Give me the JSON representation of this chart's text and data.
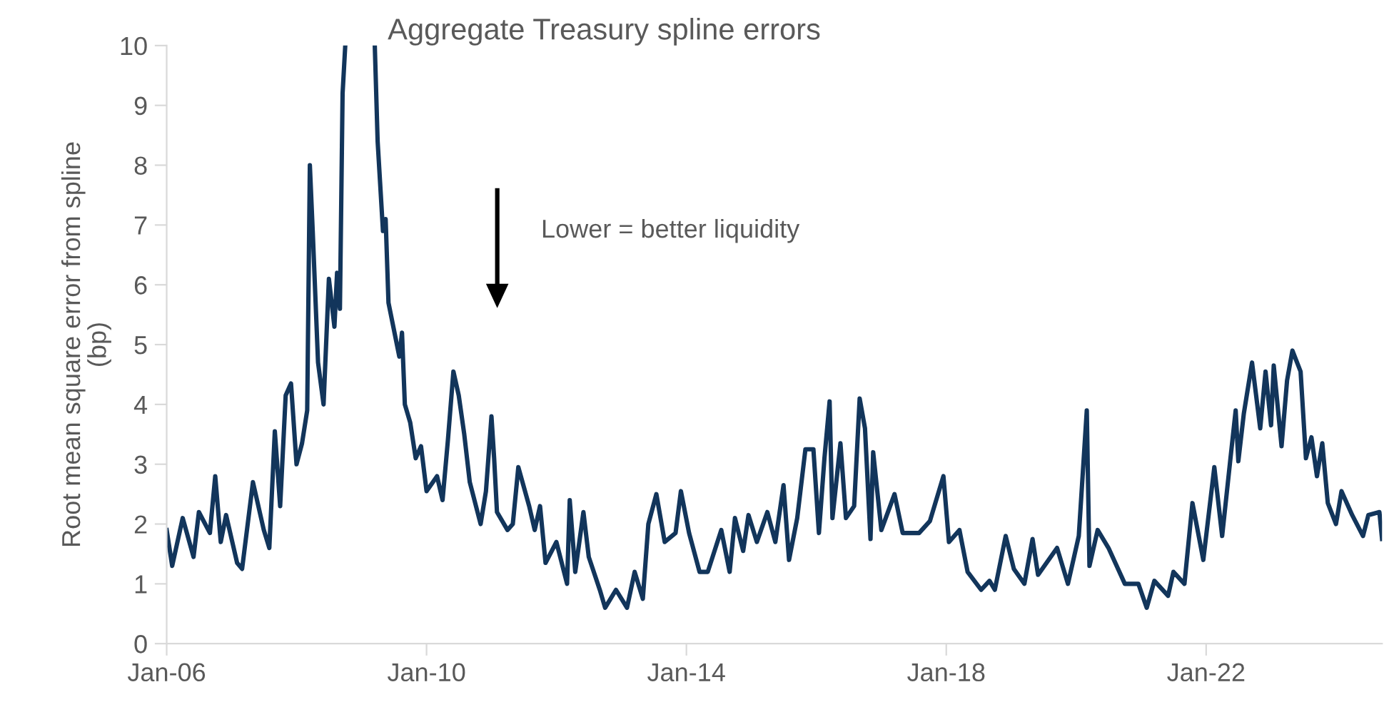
{
  "chart_data": {
    "type": "line",
    "title": "Aggregate Treasury spline errors",
    "ylabel": "Root mean square error from spline\n(bp)",
    "annotations": [
      "Lower = better liquidity"
    ],
    "xlim": [
      "2006-01-01",
      "2024-09-16"
    ],
    "xticks": [
      {
        "value": "2006-01-01",
        "label": "Jan-06"
      },
      {
        "value": "2010-01-01",
        "label": "Jan-10"
      },
      {
        "value": "2014-01-01",
        "label": "Jan-14"
      },
      {
        "value": "2018-01-01",
        "label": "Jan-18"
      },
      {
        "value": "2022-01-01",
        "label": "Jan-22"
      }
    ],
    "ylim": [
      0,
      10
    ],
    "yticks": [
      0,
      1,
      2,
      3,
      4,
      5,
      6,
      7,
      8,
      9,
      10
    ],
    "grid": false,
    "legend": false,
    "series": [
      {
        "color": "#12355b",
        "x": [
          "2006-01-01",
          "2006-02-01",
          "2006-04-01",
          "2006-06-01",
          "2006-07-01",
          "2006-09-01",
          "2006-10-01",
          "2006-11-01",
          "2006-12-01",
          "2007-02-01",
          "2007-03-01",
          "2007-05-01",
          "2007-07-01",
          "2007-08-01",
          "2007-09-01",
          "2007-10-01",
          "2007-11-01",
          "2007-12-01",
          "2008-01-01",
          "2008-02-01",
          "2008-03-01",
          "2008-03-16",
          "2008-04-01",
          "2008-05-01",
          "2008-06-01",
          "2008-07-01",
          "2008-08-01",
          "2008-08-16",
          "2008-09-01",
          "2008-09-16",
          "2008-10-01",
          "2008-12-01",
          "2009-03-16",
          "2009-04-01",
          "2009-05-01",
          "2009-05-16",
          "2009-06-01",
          "2009-08-01",
          "2009-08-16",
          "2009-09-01",
          "2009-10-01",
          "2009-11-01",
          "2009-12-01",
          "2010-01-01",
          "2010-03-01",
          "2010-04-01",
          "2010-05-01",
          "2010-06-01",
          "2010-07-01",
          "2010-08-01",
          "2010-09-01",
          "2010-11-01",
          "2010-12-01",
          "2011-01-01",
          "2011-01-16",
          "2011-02-01",
          "2011-04-01",
          "2011-05-01",
          "2011-06-01",
          "2011-08-01",
          "2011-09-01",
          "2011-10-01",
          "2011-11-01",
          "2012-01-01",
          "2012-03-01",
          "2012-03-16",
          "2012-04-16",
          "2012-06-01",
          "2012-07-01",
          "2012-09-01",
          "2012-10-01",
          "2012-12-01",
          "2013-02-01",
          "2013-03-16",
          "2013-05-01",
          "2013-06-01",
          "2013-07-16",
          "2013-09-01",
          "2013-11-01",
          "2013-12-01",
          "2014-01-16",
          "2014-03-16",
          "2014-05-01",
          "2014-07-16",
          "2014-09-01",
          "2014-10-01",
          "2014-11-16",
          "2014-12-16",
          "2015-02-01",
          "2015-04-01",
          "2015-05-16",
          "2015-07-01",
          "2015-08-01",
          "2015-09-16",
          "2015-11-01",
          "2015-12-16",
          "2016-01-16",
          "2016-02-16",
          "2016-03-16",
          "2016-04-01",
          "2016-05-16",
          "2016-06-16",
          "2016-08-01",
          "2016-09-01",
          "2016-10-01",
          "2016-11-01",
          "2016-11-16",
          "2017-01-01",
          "2017-03-16",
          "2017-05-01",
          "2017-08-01",
          "2017-10-01",
          "2017-12-16",
          "2018-01-16",
          "2018-03-16",
          "2018-05-01",
          "2018-07-16",
          "2018-09-01",
          "2018-10-01",
          "2018-12-01",
          "2019-01-16",
          "2019-03-16",
          "2019-05-01",
          "2019-06-01",
          "2019-09-16",
          "2019-11-16",
          "2020-01-16",
          "2020-03-01",
          "2020-03-16",
          "2020-05-01",
          "2020-07-01",
          "2020-10-01",
          "2020-12-16",
          "2021-02-01",
          "2021-03-16",
          "2021-06-01",
          "2021-07-01",
          "2021-09-01",
          "2021-10-16",
          "2021-12-16",
          "2022-02-16",
          "2022-04-01",
          "2022-05-16",
          "2022-06-16",
          "2022-07-01",
          "2022-08-01",
          "2022-09-16",
          "2022-11-01",
          "2022-12-01",
          "2023-01-01",
          "2023-01-16",
          "2023-03-01",
          "2023-04-01",
          "2023-05-01",
          "2023-06-16",
          "2023-07-16",
          "2023-08-16",
          "2023-09-16",
          "2023-10-16",
          "2023-11-16",
          "2024-01-01",
          "2024-02-01",
          "2024-04-01",
          "2024-06-01",
          "2024-07-01",
          "2024-09-01",
          "2024-09-16"
        ],
        "values": [
          1.9,
          1.3,
          2.1,
          1.45,
          2.2,
          1.85,
          2.8,
          1.7,
          2.15,
          1.35,
          1.25,
          2.7,
          1.9,
          1.6,
          3.55,
          2.3,
          4.15,
          4.35,
          3.0,
          3.35,
          3.9,
          8.0,
          6.9,
          4.7,
          4.0,
          6.1,
          5.3,
          6.2,
          5.6,
          9.2,
          10,
          null,
          10,
          8.4,
          6.9,
          7.1,
          5.7,
          4.8,
          5.2,
          4.0,
          3.7,
          3.1,
          3.3,
          2.55,
          2.8,
          2.4,
          3.4,
          4.55,
          4.15,
          3.5,
          2.7,
          2.0,
          2.55,
          3.8,
          3.1,
          2.2,
          1.9,
          2.0,
          2.95,
          2.3,
          1.9,
          2.3,
          1.35,
          1.7,
          1.0,
          2.4,
          1.2,
          2.2,
          1.45,
          0.9,
          0.6,
          0.9,
          0.6,
          1.2,
          0.75,
          2.0,
          2.5,
          1.7,
          1.85,
          2.55,
          1.85,
          1.2,
          1.2,
          1.9,
          1.2,
          2.1,
          1.55,
          2.15,
          1.7,
          2.2,
          1.7,
          2.65,
          1.4,
          2.1,
          3.25,
          3.25,
          1.85,
          3.1,
          4.05,
          2.1,
          3.35,
          2.1,
          2.3,
          4.1,
          3.6,
          1.75,
          3.2,
          1.9,
          2.5,
          1.85,
          1.85,
          2.05,
          2.8,
          1.7,
          1.9,
          1.2,
          0.9,
          1.05,
          0.9,
          1.8,
          1.25,
          1.0,
          1.75,
          1.15,
          1.6,
          1.0,
          1.8,
          3.9,
          1.3,
          1.9,
          1.6,
          1.0,
          1.0,
          0.6,
          1.05,
          0.8,
          1.2,
          1.0,
          2.35,
          1.4,
          2.95,
          1.8,
          3.05,
          3.9,
          3.05,
          3.85,
          4.7,
          3.6,
          4.55,
          3.65,
          4.65,
          3.3,
          4.4,
          4.9,
          4.55,
          3.1,
          3.45,
          2.8,
          3.35,
          2.35,
          2.0,
          2.55,
          2.15,
          1.8,
          2.15,
          2.2,
          1.75
        ]
      }
    ]
  }
}
